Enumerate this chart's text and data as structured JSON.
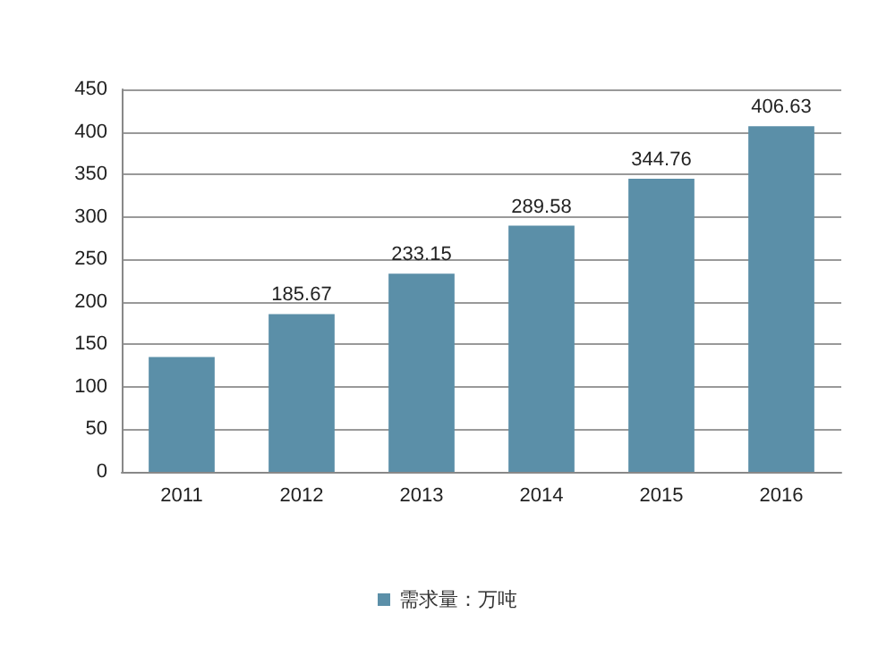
{
  "chart_data": {
    "type": "bar",
    "categories": [
      "2011",
      "2012",
      "2013",
      "2014",
      "2015",
      "2016"
    ],
    "series": [
      {
        "name": "需求量：万吨",
        "color": "#5b8fa8",
        "values": [
          135,
          185.67,
          233.15,
          289.58,
          344.76,
          406.63
        ],
        "value_labels": [
          null,
          "185.67",
          "233.15",
          "289.58",
          "344.76",
          "406.63"
        ]
      }
    ],
    "ylim": [
      0,
      450
    ],
    "yticks": [
      0,
      50,
      100,
      150,
      200,
      250,
      300,
      350,
      400,
      450
    ],
    "grid": "y",
    "legend": "bottom"
  }
}
